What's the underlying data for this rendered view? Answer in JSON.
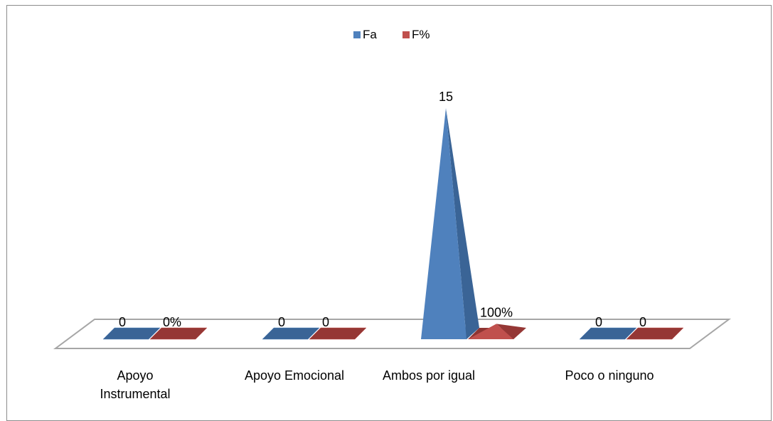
{
  "chart_data": {
    "type": "bar",
    "style": "3d-pyramid",
    "title": "",
    "categories": [
      "Apoyo Instrumental",
      "Apoyo Emocional",
      "Ambos por igual",
      "Poco o ninguno"
    ],
    "category_label_lines": [
      [
        "Apoyo",
        "Instrumental"
      ],
      [
        "Apoyo Emocional"
      ],
      [
        "Ambos por igual"
      ],
      [
        "Poco o ninguno"
      ]
    ],
    "series": [
      {
        "name": "Fa",
        "values": [
          0,
          0,
          15,
          0
        ],
        "data_labels": [
          "0",
          "0",
          "15",
          "0"
        ],
        "color": "#4F81BD",
        "side_color": "#3A6496",
        "top_color": "#3A6496"
      },
      {
        "name": "F%",
        "values": [
          0,
          0,
          1,
          0
        ],
        "data_labels": [
          "0%",
          "0",
          "100%",
          "0"
        ],
        "color": "#C0504D",
        "side_color": "#953735",
        "top_color": "#8E3432"
      }
    ],
    "ylim": [
      0,
      15
    ],
    "legend_position": "top",
    "grid": false
  }
}
